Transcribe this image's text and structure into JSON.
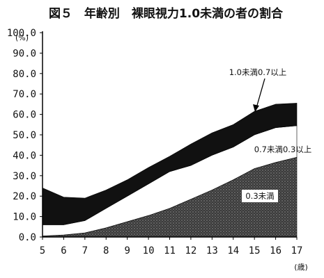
{
  "chart_data": {
    "type": "area",
    "title": "図５　年齢別　裸眼視力1.0未満の者の割合",
    "y_unit_label": "(%)",
    "x_unit_label": "(歳)",
    "x": [
      5,
      6,
      7,
      8,
      9,
      10,
      11,
      12,
      13,
      14,
      15,
      16,
      17
    ],
    "xlim": [
      5,
      17
    ],
    "ylim": [
      0,
      100
    ],
    "y_ticks": [
      "100.0",
      "90.0",
      "80.0",
      "70.0",
      "60.0",
      "50.0",
      "40.0",
      "30.0",
      "20.0",
      "10.0",
      "0.0"
    ],
    "stacked": true,
    "series": [
      {
        "name": "0.3未満",
        "values": [
          0.5,
          1.0,
          2.0,
          4.5,
          7.5,
          10.5,
          14.0,
          18.5,
          23.0,
          28.0,
          33.5,
          36.5,
          39.0
        ],
        "fill": "dots-dark"
      },
      {
        "name": "0.7未満0.3以上",
        "values": [
          5.5,
          5.0,
          6.0,
          9.5,
          12.5,
          15.5,
          18.0,
          16.5,
          17.0,
          16.0,
          16.5,
          17.0,
          15.5
        ],
        "fill": "white"
      },
      {
        "name": "1.0未満0.7以上",
        "values": [
          18.0,
          13.5,
          11.0,
          9.0,
          8.0,
          8.0,
          7.5,
          10.5,
          11.0,
          11.0,
          11.5,
          11.5,
          11.0
        ],
        "fill": "black"
      }
    ],
    "annotations": {
      "upper": "1.0未満0.7以上",
      "middle": "0.7未満0.3以上",
      "lower": "0.3未満"
    },
    "grid": false
  }
}
